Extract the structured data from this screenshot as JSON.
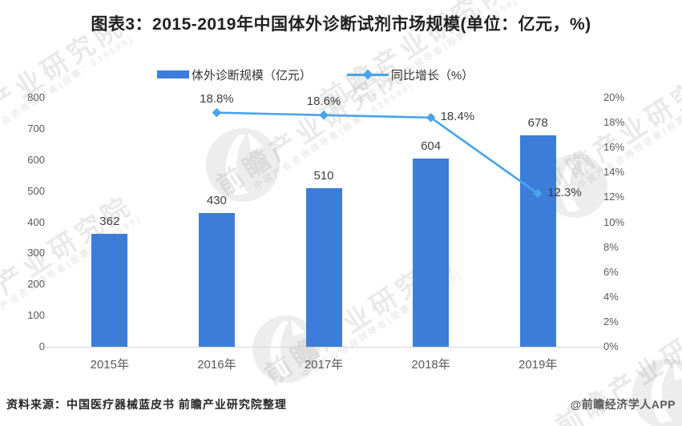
{
  "title": "图表3：2015-2019年中国体外诊断试剂市场规模(单位：亿元，%)",
  "legend": [
    {
      "label": "体外诊断规模（亿元）",
      "type": "bar",
      "color": "#3C7DDA"
    },
    {
      "label": "同比增长（%）",
      "type": "line",
      "color": "#47A4E8"
    }
  ],
  "chart_data": {
    "type": "bar+line",
    "title": "图表3：2015-2019年中国体外诊断试剂市场规模(单位：亿元，%)",
    "categories": [
      "2015年",
      "2016年",
      "2017年",
      "2018年",
      "2019年"
    ],
    "series": [
      {
        "name": "体外诊断规模（亿元）",
        "type": "bar",
        "axis": "left",
        "values": [
          362,
          430,
          510,
          604,
          678
        ],
        "labels": [
          "362",
          "430",
          "510",
          "604",
          "678"
        ],
        "color": "#3C7DDA"
      },
      {
        "name": "同比增长（%）",
        "type": "line",
        "axis": "right",
        "values": [
          null,
          18.8,
          18.6,
          18.4,
          12.3
        ],
        "labels": [
          null,
          "18.8%",
          "18.6%",
          "18.4%",
          "12.3%"
        ],
        "label_placement": [
          null,
          "above",
          "above",
          "right",
          "right"
        ],
        "color": "#47A4E8"
      }
    ],
    "left_axis": {
      "min": 0,
      "max": 800,
      "step": 100,
      "ticks": [
        "0",
        "100",
        "200",
        "300",
        "400",
        "500",
        "600",
        "700",
        "800"
      ]
    },
    "right_axis": {
      "min": 0,
      "max": 20,
      "step": 2,
      "ticks": [
        "0%",
        "2%",
        "4%",
        "6%",
        "8%",
        "10%",
        "12%",
        "14%",
        "16%",
        "18%",
        "20%"
      ]
    },
    "grid": false,
    "legend_position": "top"
  },
  "footer": {
    "source": "资料来源：中国医疗器械蓝皮书 前瞻产业研究院整理",
    "credit": "@前瞻经济学人APP"
  },
  "watermark": {
    "text": "前瞻产业研究院",
    "subtext": "中国产业咨询领导者(股票：839599)"
  },
  "colors": {
    "bar": "#3C7DDA",
    "line": "#47A4E8",
    "axis_text": "#595959",
    "value_text": "#3d3d3d",
    "title_text": "#1f1f1f",
    "axis_line": "#d6d6d6"
  }
}
